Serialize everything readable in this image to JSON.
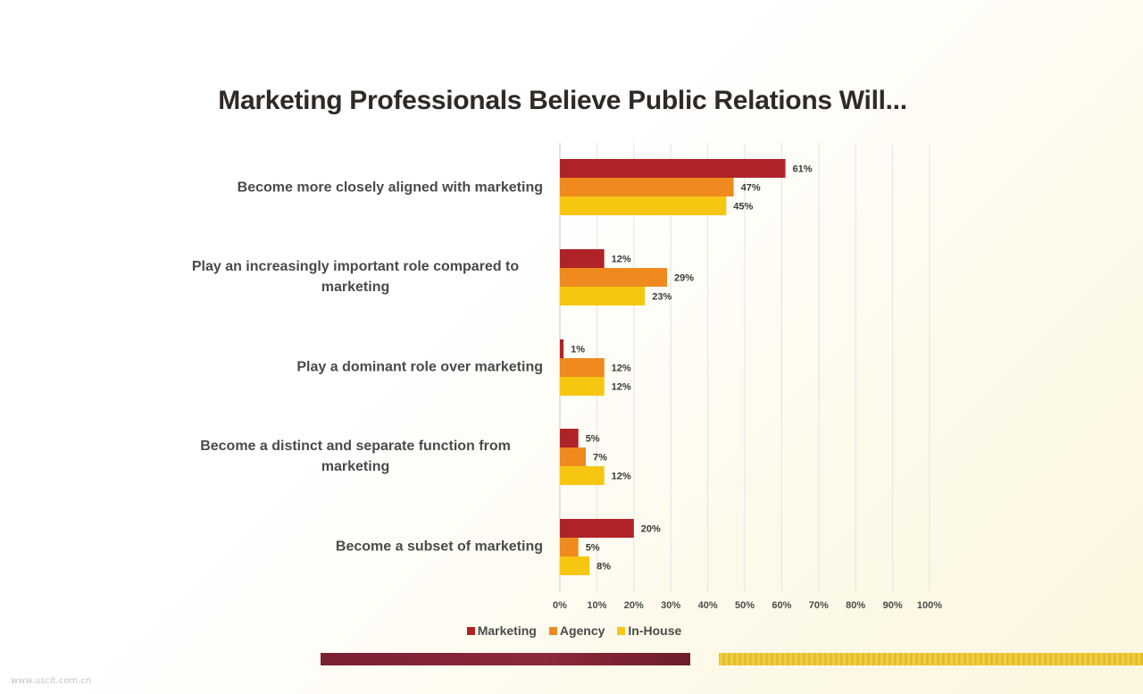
{
  "slide": {
    "title": "Marketing Professionals Believe Public Relations Will...",
    "watermark": "www.uscit.com.cn"
  },
  "colors": {
    "marketing": "#b02327",
    "agency": "#ef8a1e",
    "inhouse": "#f6c611",
    "grid": "#e3e3e3",
    "axis": "#c9c9c9",
    "text": "#4a4a4a"
  },
  "chart_data": {
    "type": "bar",
    "orientation": "horizontal",
    "title": "Marketing Professionals Believe Public Relations Will...",
    "categories": [
      "Become more closely aligned with marketing",
      "Play an increasingly important role compared to marketing",
      "Play a dominant role over marketing",
      "Become a distinct and separate function from marketing",
      "Become a subset of marketing"
    ],
    "series": [
      {
        "name": "Marketing",
        "values": [
          61,
          12,
          1,
          5,
          20
        ]
      },
      {
        "name": "Agency",
        "values": [
          47,
          29,
          12,
          7,
          5
        ]
      },
      {
        "name": "In-House",
        "values": [
          45,
          23,
          12,
          12,
          8
        ]
      }
    ],
    "xlim": [
      0,
      100
    ],
    "ticks": [
      "0%",
      "10%",
      "20%",
      "30%",
      "40%",
      "50%",
      "60%",
      "70%",
      "80%",
      "90%",
      "100%"
    ],
    "grid": true,
    "legend_position": "bottom",
    "value_suffix": "%"
  }
}
